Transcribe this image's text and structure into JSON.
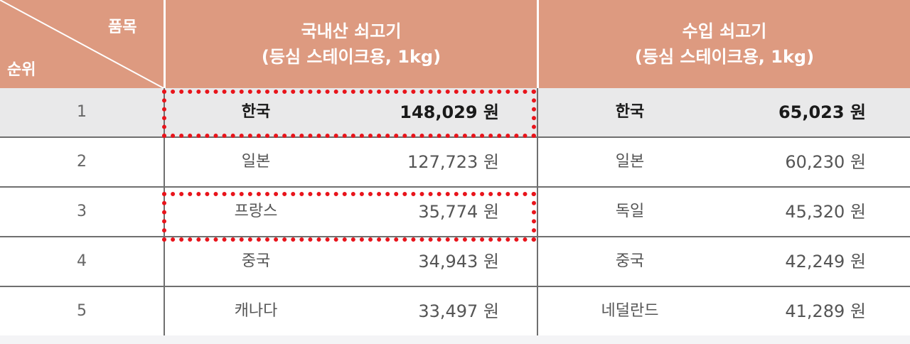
{
  "header": {
    "item_label": "품목",
    "rank_label": "순위",
    "domestic_title_1": "국내산 쇠고기",
    "domestic_title_2": "(등심 스테이크용, 1kg)",
    "imported_title_1": "수입 쇠고기",
    "imported_title_2": "(등심 스테이크용, 1kg)"
  },
  "rows": [
    {
      "rank": "1",
      "domestic_country": "한국",
      "domestic_price": "148,029 원",
      "imported_country": "한국",
      "imported_price": "65,023 원"
    },
    {
      "rank": "2",
      "domestic_country": "일본",
      "domestic_price": "127,723 원",
      "imported_country": "일본",
      "imported_price": "60,230 원"
    },
    {
      "rank": "3",
      "domestic_country": "프랑스",
      "domestic_price": "35,774 원",
      "imported_country": "독일",
      "imported_price": "45,320 원"
    },
    {
      "rank": "4",
      "domestic_country": "중국",
      "domestic_price": "34,943 원",
      "imported_country": "중국",
      "imported_price": "42,249 원"
    },
    {
      "rank": "5",
      "domestic_country": "캐나다",
      "domestic_price": "33,497 원",
      "imported_country": "네덜란드",
      "imported_price": "41,289 원"
    }
  ],
  "colors": {
    "header_bg": "#dd9a80",
    "highlight": "#e8141b",
    "first_row_bg": "#e9e9ea"
  }
}
